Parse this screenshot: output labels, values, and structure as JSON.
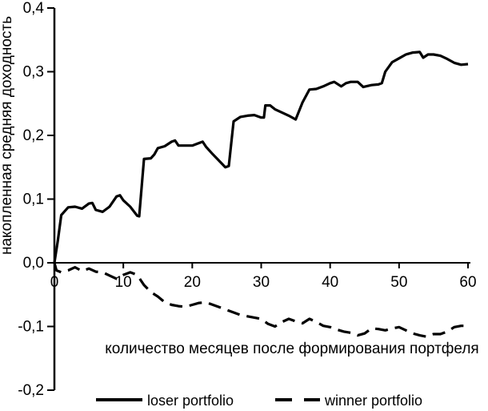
{
  "page": {
    "background": "#ffffff",
    "ink": "#000000"
  },
  "chart_data": {
    "type": "line",
    "title": "",
    "xlabel": "количество месяцев после формирования портфеля",
    "ylabel": "накопленная средняя доходность",
    "xlim": [
      0,
      60
    ],
    "ylim": [
      -0.2,
      0.4
    ],
    "grid": "off",
    "x_ticks": [
      {
        "value": 0,
        "label": "0"
      },
      {
        "value": 10,
        "label": "10"
      },
      {
        "value": 20,
        "label": "20"
      },
      {
        "value": 30,
        "label": "30"
      },
      {
        "value": 40,
        "label": "40"
      },
      {
        "value": 50,
        "label": "50"
      },
      {
        "value": 60,
        "label": "60"
      }
    ],
    "y_ticks": [
      {
        "value": 0.4,
        "label": "0,4"
      },
      {
        "value": 0.3,
        "label": "0,3"
      },
      {
        "value": 0.2,
        "label": "0,2"
      },
      {
        "value": 0.1,
        "label": "0,1"
      },
      {
        "value": 0.0,
        "label": "0,0"
      },
      {
        "value": -0.1,
        "label": "-0,1"
      },
      {
        "value": -0.2,
        "label": "-0,2"
      }
    ],
    "legend": {
      "position": "bottom",
      "entries": [
        {
          "label": "loser portfolio",
          "line_style": "solid"
        },
        {
          "label": "winner portfolio",
          "line_style": "dashed"
        }
      ]
    },
    "series": [
      {
        "name": "loser portfolio",
        "style": "solid",
        "color": "#000000",
        "x": [
          0,
          0.5,
          1,
          2,
          3,
          4,
          5,
          5.5,
          6,
          7,
          8,
          9,
          9.5,
          10,
          11,
          12,
          12.3,
          13,
          14,
          14.5,
          15,
          16,
          17,
          17.5,
          18,
          19,
          20,
          21,
          21.5,
          22,
          23,
          24,
          24.8,
          25.3,
          26,
          27,
          28,
          29,
          30,
          30.4,
          30.6,
          31.3,
          32,
          33,
          34,
          35,
          36,
          37,
          38,
          39,
          40,
          40.6,
          41.6,
          42.3,
          43,
          44,
          44.8,
          46,
          47,
          47.5,
          48,
          49,
          50,
          51,
          52,
          53,
          53.5,
          54.2,
          55,
          56,
          57,
          58,
          59,
          60
        ],
        "y": [
          0,
          0.035,
          0.075,
          0.087,
          0.088,
          0.085,
          0.093,
          0.094,
          0.083,
          0.08,
          0.088,
          0.104,
          0.106,
          0.098,
          0.088,
          0.074,
          0.073,
          0.163,
          0.164,
          0.17,
          0.18,
          0.183,
          0.19,
          0.192,
          0.184,
          0.184,
          0.184,
          0.188,
          0.19,
          0.182,
          0.17,
          0.159,
          0.15,
          0.152,
          0.222,
          0.229,
          0.231,
          0.232,
          0.228,
          0.228,
          0.247,
          0.247,
          0.241,
          0.236,
          0.231,
          0.225,
          0.252,
          0.272,
          0.273,
          0.277,
          0.282,
          0.284,
          0.277,
          0.282,
          0.284,
          0.284,
          0.276,
          0.279,
          0.28,
          0.282,
          0.3,
          0.315,
          0.321,
          0.327,
          0.33,
          0.331,
          0.322,
          0.327,
          0.327,
          0.325,
          0.32,
          0.314,
          0.311,
          0.312
        ]
      },
      {
        "name": "winner portfolio",
        "style": "dashed",
        "color": "#000000",
        "x": [
          0,
          0.3,
          1,
          2,
          3,
          4,
          5,
          6,
          7,
          8,
          9,
          10,
          11,
          12,
          13,
          14,
          15,
          16,
          17,
          18,
          19,
          20,
          21,
          22,
          23,
          24,
          25,
          26,
          27,
          28,
          29,
          30,
          31,
          32,
          33,
          34,
          35,
          36,
          37,
          38,
          39,
          40,
          41,
          42,
          43,
          44,
          45,
          46,
          47,
          48,
          49,
          50,
          51,
          52,
          53,
          54,
          55,
          56,
          57,
          58,
          59,
          60
        ],
        "y": [
          0,
          -0.012,
          -0.015,
          -0.012,
          -0.007,
          -0.013,
          -0.009,
          -0.014,
          -0.015,
          -0.02,
          -0.025,
          -0.019,
          -0.015,
          -0.019,
          -0.035,
          -0.046,
          -0.053,
          -0.062,
          -0.066,
          -0.068,
          -0.069,
          -0.066,
          -0.063,
          -0.062,
          -0.066,
          -0.07,
          -0.074,
          -0.078,
          -0.082,
          -0.084,
          -0.086,
          -0.088,
          -0.096,
          -0.1,
          -0.093,
          -0.088,
          -0.092,
          -0.095,
          -0.088,
          -0.093,
          -0.099,
          -0.101,
          -0.105,
          -0.108,
          -0.11,
          -0.114,
          -0.111,
          -0.103,
          -0.104,
          -0.106,
          -0.103,
          -0.101,
          -0.106,
          -0.111,
          -0.114,
          -0.116,
          -0.112,
          -0.112,
          -0.108,
          -0.101,
          -0.099,
          -0.099
        ]
      }
    ]
  }
}
